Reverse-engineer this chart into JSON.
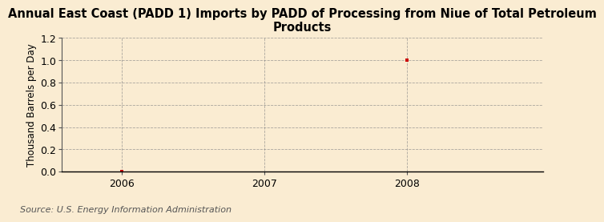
{
  "title": "Annual East Coast (PADD 1) Imports by PADD of Processing from Niue of Total Petroleum\nProducts",
  "ylabel": "Thousand Barrels per Day",
  "source": "Source: U.S. Energy Information Administration",
  "xlim": [
    2005.58,
    2008.95
  ],
  "ylim": [
    0.0,
    1.2
  ],
  "yticks": [
    0.0,
    0.2,
    0.4,
    0.6,
    0.8,
    1.0,
    1.2
  ],
  "xticks": [
    2006,
    2007,
    2008
  ],
  "data_x": [
    2006,
    2008
  ],
  "data_y": [
    0.0,
    1.0
  ],
  "point_color": "#cc0000",
  "bg_color": "#faecd2",
  "grid_color": "#888888",
  "title_fontsize": 10.5,
  "axis_fontsize": 8.5,
  "tick_fontsize": 9,
  "source_fontsize": 8
}
